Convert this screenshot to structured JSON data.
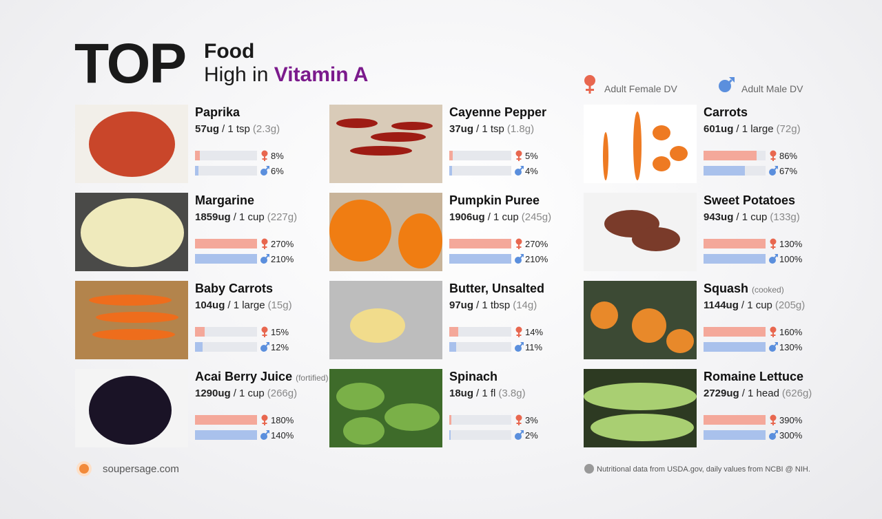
{
  "header": {
    "title": "TOP",
    "line1": "Food",
    "line2_prefix": "High in",
    "line2_highlight": "Vitamin A"
  },
  "legend": {
    "female": "Adult Female DV",
    "male": "Adult Male DV"
  },
  "items": [
    {
      "name": "Paprika",
      "amount": "57ug",
      "serving": "/ 1 tsp",
      "weight": "(2.3g)",
      "female": {
        "value": 8,
        "label": "8%"
      },
      "male": {
        "value": 6,
        "label": "6%"
      }
    },
    {
      "name": "Cayenne Pepper",
      "amount": "37ug",
      "serving": "/ 1 tsp",
      "weight": "(1.8g)",
      "female": {
        "value": 5,
        "label": "5%"
      },
      "male": {
        "value": 4,
        "label": "4%"
      }
    },
    {
      "name": "Carrots",
      "amount": "601ug",
      "serving": "/ 1 large",
      "weight": "(72g)",
      "female": {
        "value": 86,
        "label": "86%"
      },
      "male": {
        "value": 67,
        "label": "67%"
      }
    },
    {
      "name": "Margarine",
      "amount": "1859ug",
      "serving": "/ 1 cup",
      "weight": "(227g)",
      "female": {
        "value": 270,
        "label": "270%"
      },
      "male": {
        "value": 210,
        "label": "210%"
      }
    },
    {
      "name": "Pumpkin Puree",
      "amount": "1906ug",
      "serving": "/ 1 cup",
      "weight": "(245g)",
      "female": {
        "value": 270,
        "label": "270%"
      },
      "male": {
        "value": 210,
        "label": "210%"
      }
    },
    {
      "name": "Sweet Potatoes",
      "amount": "943ug",
      "serving": "/ 1 cup",
      "weight": "(133g)",
      "female": {
        "value": 130,
        "label": "130%"
      },
      "male": {
        "value": 100,
        "label": "100%"
      }
    },
    {
      "name": "Baby Carrots",
      "amount": "104ug",
      "serving": "/ 1 large",
      "weight": "(15g)",
      "female": {
        "value": 15,
        "label": "15%"
      },
      "male": {
        "value": 12,
        "label": "12%"
      }
    },
    {
      "name": "Butter, Unsalted",
      "amount": "97ug",
      "serving": "/ 1 tbsp",
      "weight": "(14g)",
      "female": {
        "value": 14,
        "label": "14%"
      },
      "male": {
        "value": 11,
        "label": "11%"
      }
    },
    {
      "name": "Squash",
      "note": "(cooked)",
      "amount": "1144ug",
      "serving": "/ 1 cup",
      "weight": "(205g)",
      "female": {
        "value": 160,
        "label": "160%"
      },
      "male": {
        "value": 130,
        "label": "130%"
      }
    },
    {
      "name": "Acai Berry Juice",
      "note": "(fortified)",
      "amount": "1290ug",
      "serving": "/ 1 cup",
      "weight": "(266g)",
      "female": {
        "value": 180,
        "label": "180%"
      },
      "male": {
        "value": 140,
        "label": "140%"
      }
    },
    {
      "name": "Spinach",
      "amount": "18ug",
      "serving": "/ 1 fl",
      "weight": "(3.8g)",
      "female": {
        "value": 3,
        "label": "3%"
      },
      "male": {
        "value": 2,
        "label": "2%"
      }
    },
    {
      "name": "Romaine Lettuce",
      "amount": "2729ug",
      "serving": "/ 1 head",
      "weight": "(626g)",
      "female": {
        "value": 390,
        "label": "390%"
      },
      "male": {
        "value": 300,
        "label": "300%"
      }
    }
  ],
  "footer": {
    "site": "soupersage.com",
    "source": "Nutritional data from USDA.gov, daily values from NCBI @ NIH."
  }
}
